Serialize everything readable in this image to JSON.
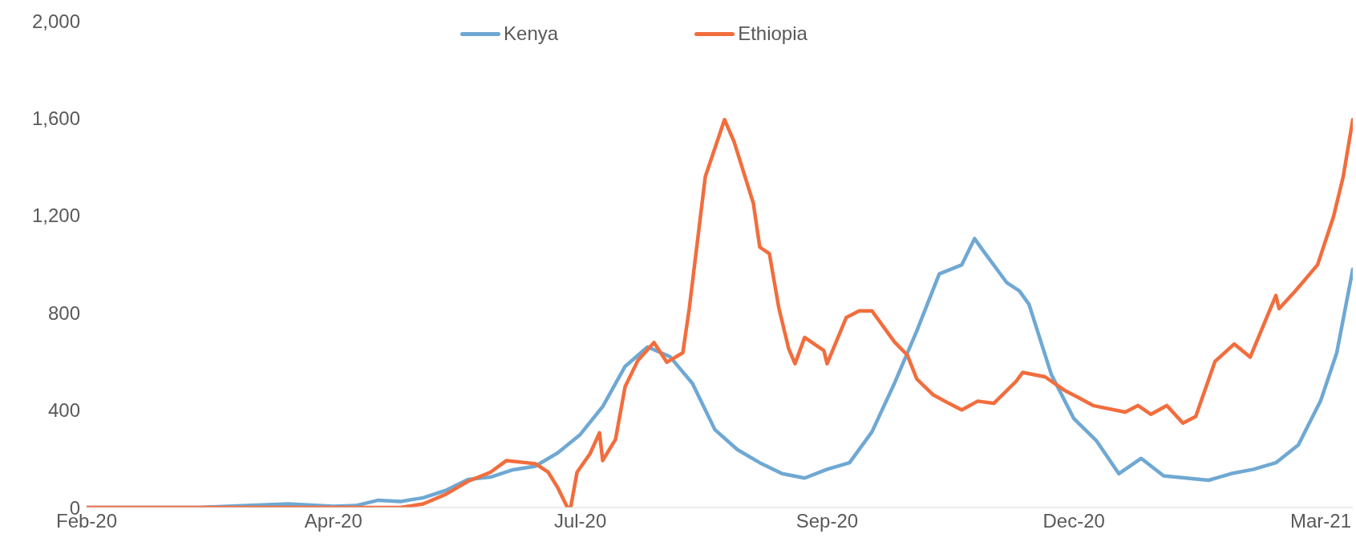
{
  "chart_data": {
    "type": "line",
    "legend": "top",
    "xlim": [
      "2020-02-11",
      "2021-03-12"
    ],
    "ylim": [
      0,
      2000
    ],
    "xticks": [
      {
        "value": "2020-02-11",
        "label": "Feb-20"
      },
      {
        "value": "2020-04-28",
        "label": "Apr-20"
      },
      {
        "value": "2020-07-14",
        "label": "Jul-20"
      },
      {
        "value": "2020-09-29",
        "label": "Sep-20"
      },
      {
        "value": "2020-12-15",
        "label": "Dec-20"
      },
      {
        "value": "2021-03-02",
        "label": "Mar-21"
      }
    ],
    "yticks": [
      0,
      400,
      800,
      {
        "value": 1200,
        "label": "1,200"
      },
      {
        "value": 1600,
        "label": "1,600"
      },
      {
        "value": 2000,
        "label": "2,000"
      }
    ],
    "series": [
      {
        "name": "Kenya",
        "color": "#6fa8d3",
        "x": [
          "2020-02-11",
          "2020-03-17",
          "2020-04-01",
          "2020-04-14",
          "2020-04-28",
          "2020-05-05",
          "2020-05-12",
          "2020-05-19",
          "2020-05-26",
          "2020-06-02",
          "2020-06-09",
          "2020-06-16",
          "2020-06-23",
          "2020-06-30",
          "2020-07-07",
          "2020-07-14",
          "2020-07-21",
          "2020-07-28",
          "2020-08-04",
          "2020-08-11",
          "2020-08-18",
          "2020-08-25",
          "2020-09-01",
          "2020-09-08",
          "2020-09-15",
          "2020-09-22",
          "2020-09-29",
          "2020-10-06",
          "2020-10-13",
          "2020-10-20",
          "2020-10-27",
          "2020-11-03",
          "2020-11-10",
          "2020-11-14",
          "2020-11-17",
          "2020-11-24",
          "2020-11-28",
          "2020-12-01",
          "2020-12-08",
          "2020-12-15",
          "2020-12-22",
          "2020-12-29",
          "2021-01-05",
          "2021-01-12",
          "2021-01-19",
          "2021-01-26",
          "2021-02-02",
          "2021-02-09",
          "2021-02-16",
          "2021-02-23",
          "2021-03-02",
          "2021-03-07",
          "2021-03-12"
        ],
        "values": [
          0,
          0,
          8,
          15,
          5,
          8,
          30,
          25,
          40,
          70,
          115,
          125,
          155,
          170,
          225,
          300,
          415,
          580,
          660,
          620,
          510,
          320,
          238,
          184,
          139,
          121,
          157,
          184,
          311,
          510,
          726,
          960,
          997,
          1105,
          1050,
          925,
          890,
          835,
          545,
          365,
          275,
          139,
          202,
          130,
          121,
          112,
          139,
          157,
          184,
          257,
          440,
          636,
          979
        ]
      },
      {
        "name": "Ethiopia",
        "color": "#f26d3d",
        "x": [
          "2020-02-11",
          "2020-05-19",
          "2020-05-26",
          "2020-06-02",
          "2020-06-09",
          "2020-06-16",
          "2020-06-21",
          "2020-06-30",
          "2020-07-04",
          "2020-07-07",
          "2020-07-10",
          "2020-07-11",
          "2020-07-13",
          "2020-07-17",
          "2020-07-20",
          "2020-07-21",
          "2020-07-25",
          "2020-07-28",
          "2020-08-01",
          "2020-08-06",
          "2020-08-10",
          "2020-08-15",
          "2020-08-17",
          "2020-08-22",
          "2020-08-28",
          "2020-08-31",
          "2020-09-06",
          "2020-09-08",
          "2020-09-11",
          "2020-09-14",
          "2020-09-17",
          "2020-09-19",
          "2020-09-22",
          "2020-09-28",
          "2020-09-29",
          "2020-10-05",
          "2020-10-09",
          "2020-10-13",
          "2020-10-20",
          "2020-10-24",
          "2020-10-27",
          "2020-11-01",
          "2020-11-06",
          "2020-11-10",
          "2020-11-15",
          "2020-11-20",
          "2020-11-27",
          "2020-11-29",
          "2020-12-06",
          "2020-12-12",
          "2020-12-16",
          "2020-12-21",
          "2020-12-31",
          "2021-01-04",
          "2021-01-08",
          "2021-01-13",
          "2021-01-18",
          "2021-01-22",
          "2021-01-28",
          "2021-02-03",
          "2021-02-08",
          "2021-02-16",
          "2021-02-17",
          "2021-02-22",
          "2021-03-01",
          "2021-03-06",
          "2021-03-09",
          "2021-03-12"
        ],
        "values": [
          0,
          0,
          15,
          54,
          108,
          145,
          193,
          180,
          145,
          81,
          0,
          0,
          145,
          220,
          307,
          193,
          280,
          497,
          605,
          678,
          597,
          636,
          817,
          1359,
          1594,
          1503,
          1250,
          1070,
          1043,
          817,
          654,
          591,
          699,
          645,
          591,
          781,
          808,
          808,
          681,
          627,
          528,
          464,
          428,
          401,
          437,
          428,
          519,
          555,
          537,
          482,
          455,
          419,
          392,
          419,
          383,
          419,
          347,
          374,
          600,
          672,
          618,
          871,
          817,
          889,
          997,
          1196,
          1359,
          1594
        ]
      }
    ]
  }
}
